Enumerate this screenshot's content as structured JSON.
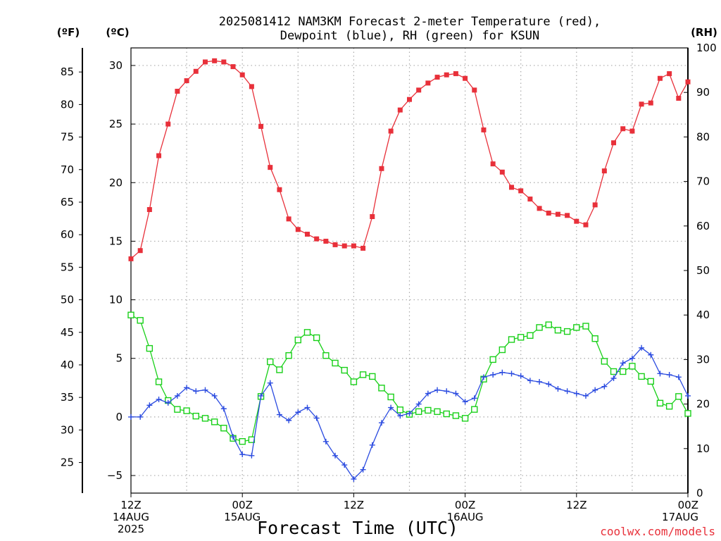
{
  "chart_data": {
    "type": "line",
    "title_lines": [
      "2025081412 NAM3KM Forecast 2-meter Temperature (red),",
      "Dewpoint (blue), RH (green) for KSUN"
    ],
    "xlabel": "Forecast Time (UTC)",
    "watermark": "coolwx.com/models",
    "units": {
      "f": "(ºF)",
      "c": "(ºC)",
      "rh": "(RH)"
    },
    "x_ticks": [
      {
        "h": 0,
        "lines": [
          "12Z",
          "14AUG",
          "2025"
        ]
      },
      {
        "h": 12,
        "lines": [
          "00Z",
          "15AUG"
        ]
      },
      {
        "h": 24,
        "lines": [
          "12Z"
        ]
      },
      {
        "h": 36,
        "lines": [
          "00Z",
          "16AUG"
        ]
      },
      {
        "h": 48,
        "lines": [
          "12Z"
        ]
      },
      {
        "h": 60,
        "lines": [
          "00Z",
          "17AUG"
        ]
      }
    ],
    "xlim": [
      0,
      60
    ],
    "celsius_axis": {
      "ylim": [
        -6.5,
        31.5
      ],
      "ticks": [
        -5,
        0,
        5,
        10,
        15,
        20,
        25,
        30
      ],
      "labels": [
        "−5",
        "0",
        "5",
        "10",
        "15",
        "20",
        "25",
        "30"
      ]
    },
    "fahrenheit_axis": {
      "ticks": [
        25,
        30,
        35,
        40,
        45,
        50,
        55,
        60,
        65,
        70,
        75,
        80,
        85
      ]
    },
    "rh_axis": {
      "ylim": [
        0,
        100
      ],
      "ticks": [
        0,
        10,
        20,
        30,
        40,
        50,
        60,
        70,
        80,
        90,
        100
      ]
    },
    "series": [
      {
        "name": "Temperature",
        "color": "#e8303a",
        "marker": "filled-square",
        "axis": "celsius",
        "x": [
          0,
          1,
          2,
          3,
          4,
          5,
          6,
          7,
          8,
          9,
          10,
          11,
          12,
          13,
          14,
          15,
          16,
          17,
          18,
          19,
          20,
          21,
          22,
          23,
          24,
          25,
          26,
          27,
          28,
          29,
          30,
          31,
          32,
          33,
          34,
          35,
          36,
          37,
          38,
          39,
          40,
          41,
          42,
          43,
          44,
          45,
          46,
          47,
          48,
          49,
          50,
          51,
          52,
          53,
          54,
          55,
          56,
          57,
          58,
          59,
          60
        ],
        "values": [
          13.5,
          14.2,
          17.7,
          22.3,
          25.0,
          27.8,
          28.7,
          29.5,
          30.3,
          30.4,
          30.3,
          29.9,
          29.2,
          28.2,
          24.8,
          21.3,
          19.4,
          16.9,
          16.0,
          15.6,
          15.2,
          15.0,
          14.7,
          14.6,
          14.6,
          14.4,
          17.1,
          21.2,
          24.4,
          26.2,
          27.1,
          27.9,
          28.5,
          29.0,
          29.2,
          29.3,
          28.9,
          27.9,
          24.5,
          21.6,
          20.9,
          19.6,
          19.3,
          18.6,
          17.8,
          17.4,
          17.3,
          17.2,
          16.7,
          16.4,
          18.1,
          21.0,
          23.4,
          24.6,
          24.4,
          26.7,
          26.8,
          28.9,
          29.3,
          27.2,
          28.6
        ]
      },
      {
        "name": "Dewpoint",
        "color": "#2b4be0",
        "marker": "plus",
        "axis": "celsius",
        "x": [
          0,
          1,
          2,
          3,
          4,
          5,
          6,
          7,
          8,
          9,
          10,
          11,
          12,
          13,
          14,
          15,
          16,
          17,
          18,
          19,
          20,
          21,
          22,
          23,
          24,
          25,
          26,
          27,
          28,
          29,
          30,
          31,
          32,
          33,
          34,
          35,
          36,
          37,
          38,
          39,
          40,
          41,
          42,
          43,
          44,
          45,
          46,
          47,
          48,
          49,
          50,
          51,
          52,
          53,
          54,
          55,
          56,
          57,
          58,
          59,
          60
        ],
        "values": [
          0.0,
          0.0,
          1.0,
          1.5,
          1.2,
          1.8,
          2.5,
          2.2,
          2.3,
          1.8,
          0.7,
          -1.7,
          -3.2,
          -3.3,
          1.8,
          2.9,
          0.2,
          -0.3,
          0.4,
          0.8,
          -0.1,
          -2.1,
          -3.3,
          -4.1,
          -5.3,
          -4.5,
          -2.4,
          -0.5,
          0.8,
          0.1,
          0.3,
          1.1,
          2.0,
          2.3,
          2.2,
          2.0,
          1.3,
          1.6,
          3.4,
          3.6,
          3.8,
          3.7,
          3.5,
          3.1,
          3.0,
          2.8,
          2.4,
          2.2,
          2.0,
          1.8,
          2.3,
          2.6,
          3.3,
          4.6,
          5.0,
          5.9,
          5.3,
          3.7,
          3.6,
          3.4,
          1.8
        ]
      },
      {
        "name": "RH",
        "color": "#19d019",
        "marker": "open-square",
        "axis": "rh",
        "x": [
          0,
          1,
          2,
          3,
          4,
          5,
          6,
          7,
          8,
          9,
          10,
          11,
          12,
          13,
          14,
          15,
          16,
          17,
          18,
          19,
          20,
          21,
          22,
          23,
          24,
          25,
          26,
          27,
          28,
          29,
          30,
          31,
          32,
          33,
          34,
          35,
          36,
          37,
          38,
          39,
          40,
          41,
          42,
          43,
          44,
          45,
          46,
          47,
          48,
          49,
          50,
          51,
          52,
          53,
          54,
          55,
          56,
          57,
          58,
          59,
          60
        ],
        "values": [
          40,
          38.8,
          32.5,
          25,
          20.8,
          18.8,
          18.5,
          17.3,
          16.8,
          16,
          14.6,
          12.3,
          11.6,
          12,
          21.7,
          29.5,
          27.7,
          30.9,
          34.4,
          36.1,
          34.9,
          30.9,
          29.2,
          27.6,
          25,
          26.6,
          26.2,
          23.6,
          21.6,
          18.7,
          17.7,
          18.3,
          18.6,
          18.3,
          17.8,
          17.4,
          16.8,
          18.8,
          25.6,
          30,
          32.2,
          34.5,
          35,
          35.4,
          37.2,
          37.8,
          36.6,
          36.3,
          37.2,
          37.5,
          34.7,
          29.6,
          27.3,
          27.3,
          28.5,
          26.2,
          25.1,
          20.2,
          19.5,
          21.7,
          17.9
        ]
      }
    ]
  }
}
